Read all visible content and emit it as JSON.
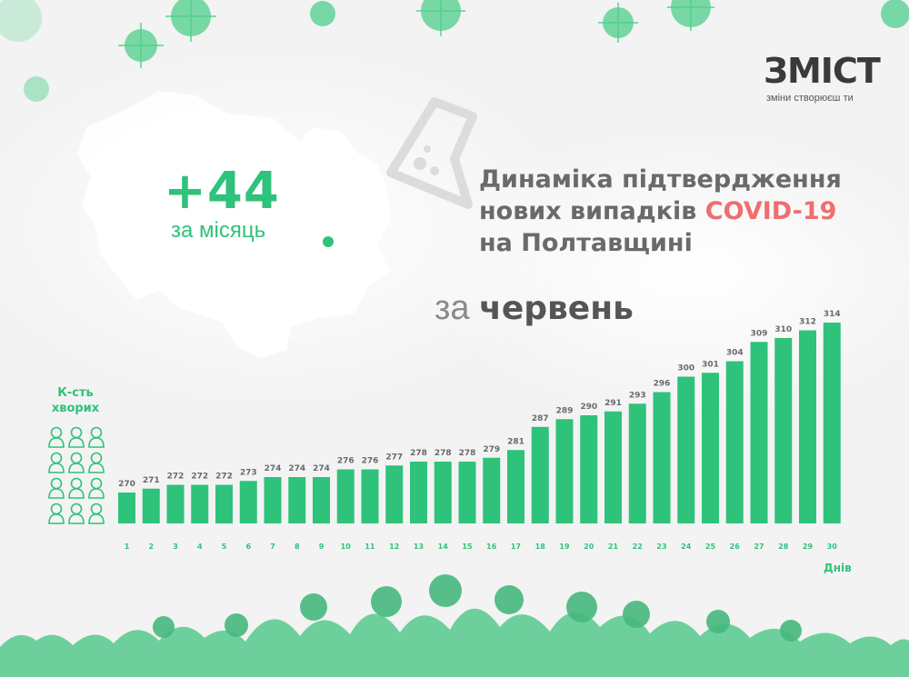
{
  "logo": {
    "name": "ЗМІСТ",
    "tagline": "зміни створюєш ти"
  },
  "highlight": {
    "value": "+44",
    "label": "за місяць"
  },
  "title": {
    "line1": "Динаміка підтвердження",
    "line2_prefix": "нових випадків ",
    "line2_highlight": "COVID-19",
    "line3": "на Полтавщині"
  },
  "period": {
    "prefix": "за ",
    "month": "червень"
  },
  "colors": {
    "accent": "#2fc27a",
    "bar": "#2fc27a",
    "highlight": "#ef6e6e",
    "text": "#6a6a6a"
  },
  "chart_data": {
    "type": "bar",
    "ylabel": "К-сть хворих",
    "xlabel": "Днів",
    "categories": [
      "1",
      "2",
      "3",
      "4",
      "5",
      "6",
      "7",
      "8",
      "9",
      "10",
      "11",
      "12",
      "13",
      "14",
      "15",
      "16",
      "17",
      "18",
      "19",
      "20",
      "21",
      "22",
      "23",
      "24",
      "25",
      "26",
      "27",
      "28",
      "29",
      "30"
    ],
    "values": [
      270,
      271,
      272,
      272,
      272,
      273,
      274,
      274,
      274,
      276,
      276,
      277,
      278,
      278,
      278,
      279,
      281,
      287,
      289,
      290,
      291,
      293,
      296,
      300,
      301,
      304,
      309,
      310,
      312,
      314
    ]
  }
}
